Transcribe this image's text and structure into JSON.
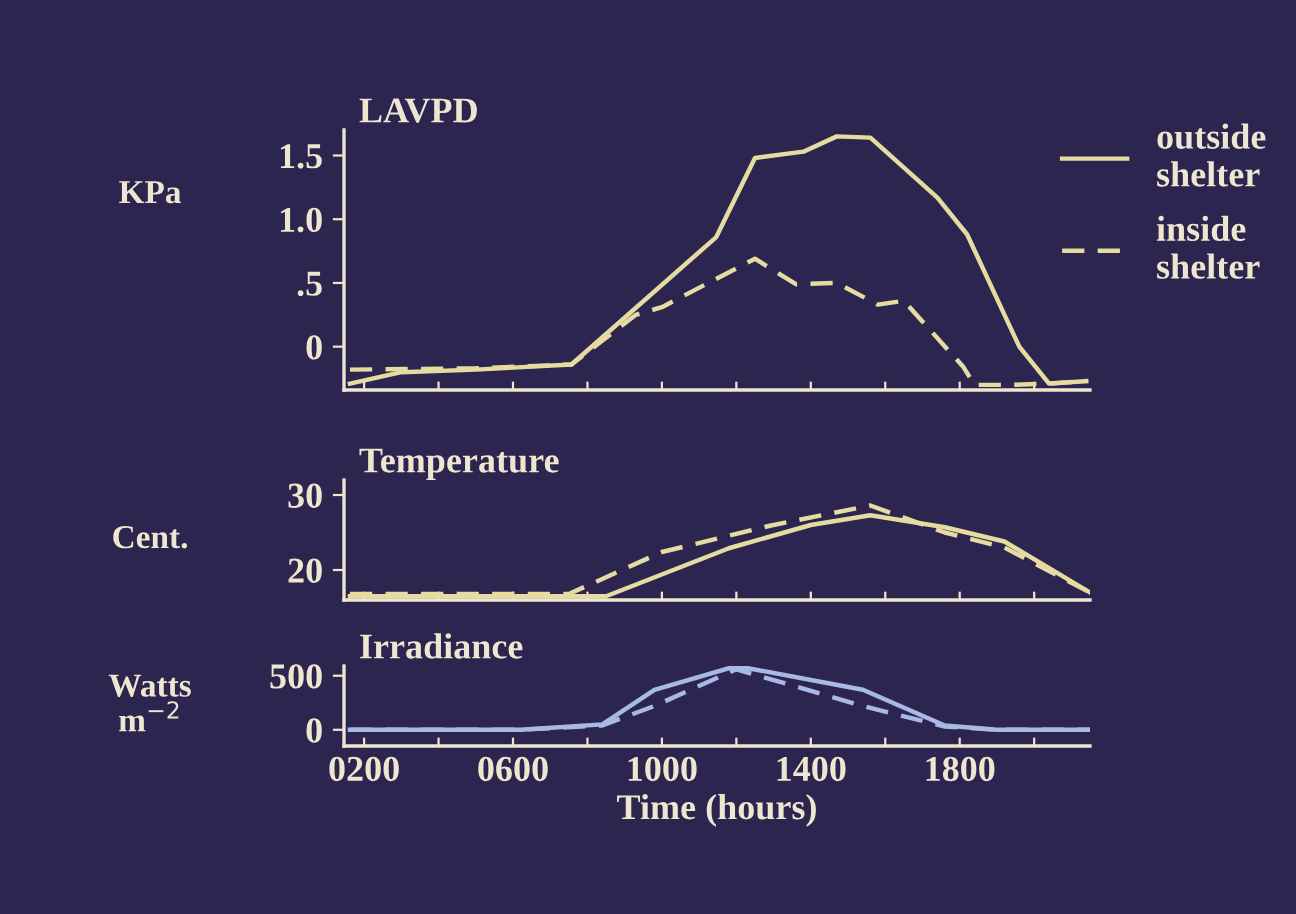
{
  "chart_data": [
    {
      "type": "line",
      "title": "LAVPD",
      "ylabel": "KPa",
      "xlim": [
        146,
        2150
      ],
      "ylim": [
        -0.34,
        1.7
      ],
      "xticks": [
        200,
        400,
        600,
        800,
        1000,
        1200,
        1400,
        1600,
        1800,
        2000
      ],
      "yticks": [
        0,
        {
          "value": 0.5,
          "label": ".5"
        },
        {
          "value": 1.0,
          "label": "1.0"
        },
        {
          "value": 1.5,
          "label": "1.5"
        }
      ],
      "tick_labels": "y",
      "legend": "top right",
      "series": [
        {
          "name": "outside shelter",
          "color": "#e6dba0",
          "line_style": "solid",
          "x": [
            162,
            300,
            500,
            757,
            1146,
            1250,
            1380,
            1470,
            1560,
            1740,
            1820,
            1960,
            2040,
            2140
          ],
          "values": [
            -0.29,
            -0.2,
            -0.18,
            -0.14,
            0.86,
            1.48,
            1.53,
            1.65,
            1.64,
            1.17,
            0.88,
            0,
            -0.29,
            -0.27
          ]
        },
        {
          "name": "inside shelter",
          "color": "#e6dba0",
          "line_style": "dashed",
          "x": [
            162,
            500,
            757,
            930,
            1000,
            1250,
            1360,
            1470,
            1580,
            1650,
            1810,
            1840,
            1940,
            2040,
            2140
          ],
          "values": [
            -0.18,
            -0.17,
            -0.14,
            0.25,
            0.31,
            0.69,
            0.49,
            0.5,
            0.33,
            0.36,
            -0.16,
            -0.3,
            -0.3,
            -0.29,
            -0.27
          ]
        }
      ]
    },
    {
      "type": "line",
      "title": "Temperature",
      "ylabel": "Cent.",
      "xlim": [
        146,
        2150
      ],
      "ylim": [
        16,
        32
      ],
      "xticks": [
        200,
        400,
        600,
        800,
        1000,
        1200,
        1400,
        1600,
        1800,
        2000
      ],
      "yticks": [
        20,
        30
      ],
      "tick_labels": "y",
      "series": [
        {
          "color": "#e6dba0",
          "line_style": "solid",
          "x": [
            162,
            850,
            1180,
            1400,
            1560,
            1760,
            1920,
            2150
          ],
          "values": [
            16.5,
            16.5,
            22.9,
            26.0,
            27.3,
            25.7,
            23.8,
            17.0
          ]
        },
        {
          "color": "#e6dba0",
          "line_style": "dashed",
          "x": [
            162,
            750,
            1000,
            1290,
            1560,
            1760,
            1920,
            2150
          ],
          "values": [
            16.8,
            16.8,
            22.4,
            25.9,
            28.6,
            25.0,
            23.0,
            17.0
          ]
        }
      ]
    },
    {
      "type": "line",
      "title": "Irradiance",
      "ylabel": "Watts\nm$^{−2}$",
      "xlabel": "Time (hours)",
      "xlim": [
        146,
        2150
      ],
      "ylim": [
        -150,
        590
      ],
      "xticks": [
        {
          "value": 200,
          "label": "0200"
        },
        {
          "value": 400,
          "label": null
        },
        {
          "value": 600,
          "label": "0600"
        },
        {
          "value": 800,
          "label": null
        },
        {
          "value": 1000,
          "label": "1000"
        },
        {
          "value": 1200,
          "label": null
        },
        {
          "value": 1400,
          "label": "1400"
        },
        {
          "value": 1600,
          "label": null
        },
        {
          "value": 1800,
          "label": "1800"
        },
        {
          "value": 2000,
          "label": null
        }
      ],
      "yticks": [
        0,
        500
      ],
      "series": [
        {
          "color": "#a9b9e6",
          "line_style": "solid",
          "x": [
            162,
            620,
            840,
            980,
            1200,
            1540,
            1760,
            1900,
            2150
          ],
          "values": [
            0,
            0,
            50,
            370,
            590,
            370,
            40,
            0,
            0
          ]
        },
        {
          "color": "#a9b9e6",
          "line_style": "dashed",
          "x": [
            162,
            620,
            840,
            980,
            1200,
            1540,
            1760,
            1900,
            2150
          ],
          "values": [
            0,
            0,
            40,
            220,
            560,
            220,
            30,
            0,
            0
          ]
        }
      ]
    }
  ]
}
